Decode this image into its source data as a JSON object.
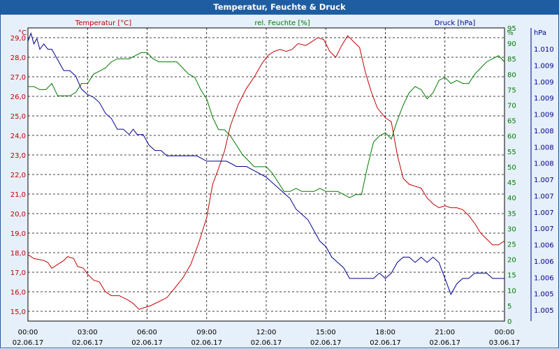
{
  "window": {
    "title": "Temperatur, Feuchte & Druck"
  },
  "colors": {
    "temperature": "#c00000",
    "humidity": "#007a00",
    "pressure": "#00008b",
    "titlebar": "#1f5da2"
  },
  "chart_data": {
    "type": "line",
    "title": "Temperatur, Feuchte & Druck",
    "x_ticks": [
      {
        "time": "00:00",
        "date": "02.06.17"
      },
      {
        "time": "03:00",
        "date": "02.06.17"
      },
      {
        "time": "06:00",
        "date": "02.06.17"
      },
      {
        "time": "09:00",
        "date": "02.06.17"
      },
      {
        "time": "12:00",
        "date": "02.06.17"
      },
      {
        "time": "15:00",
        "date": "02.06.17"
      },
      {
        "time": "18:00",
        "date": "02.06.17"
      },
      {
        "time": "21:00",
        "date": "02.06.17"
      },
      {
        "time": "00:00",
        "date": "03.06.17"
      }
    ],
    "x_range_hours": [
      0,
      24
    ],
    "axes": {
      "temperature": {
        "label": "Temperatur [°C]",
        "unit": "°C",
        "range": [
          14.5,
          29.5
        ],
        "ticks": [
          "29,0",
          "28,0",
          "27,0",
          "26,0",
          "25,0",
          "24,0",
          "23,0",
          "22,0",
          "21,0",
          "20,0",
          "19,0",
          "18,0",
          "17,0",
          "16,0",
          "15,0"
        ]
      },
      "humidity": {
        "label": "rel. Feuchte [%]",
        "unit": "%",
        "range": [
          0,
          95
        ],
        "ticks": [
          "95",
          "90",
          "85",
          "80",
          "75",
          "70",
          "65",
          "60",
          "55",
          "50",
          "45",
          "40",
          "35",
          "30",
          "25",
          "20",
          "15",
          "10",
          "5",
          "0"
        ]
      },
      "pressure": {
        "label": "Druck [hPa]",
        "unit": "hPa",
        "range": [
          1004.5,
          1010.0
        ],
        "ticks": [
          "1.010",
          "1.009",
          "1.009",
          "1.009",
          "1.009",
          "1.008",
          "1.008",
          "1.008",
          "1.007",
          "1.007",
          "1.007",
          "1.007",
          "1.006",
          "1.006",
          "1.006",
          "1.005",
          "1.005"
        ]
      }
    },
    "series": [
      {
        "name": "Temperatur",
        "axis": "temperature",
        "points": [
          [
            0,
            17.9
          ],
          [
            0.3,
            17.7
          ],
          [
            0.8,
            17.6
          ],
          [
            1.0,
            17.5
          ],
          [
            1.2,
            17.2
          ],
          [
            1.5,
            17.4
          ],
          [
            1.8,
            17.6
          ],
          [
            2.0,
            17.8
          ],
          [
            2.3,
            17.7
          ],
          [
            2.5,
            17.3
          ],
          [
            2.8,
            17.2
          ],
          [
            3.0,
            16.9
          ],
          [
            3.3,
            16.6
          ],
          [
            3.6,
            16.5
          ],
          [
            3.9,
            16.0
          ],
          [
            4.2,
            15.8
          ],
          [
            4.6,
            15.8
          ],
          [
            5.0,
            15.6
          ],
          [
            5.3,
            15.4
          ],
          [
            5.6,
            15.1
          ],
          [
            5.9,
            15.2
          ],
          [
            6.2,
            15.3
          ],
          [
            6.6,
            15.5
          ],
          [
            7.0,
            15.7
          ],
          [
            7.4,
            16.2
          ],
          [
            7.8,
            16.7
          ],
          [
            8.2,
            17.4
          ],
          [
            8.6,
            18.5
          ],
          [
            9.0,
            19.8
          ],
          [
            9.3,
            21.5
          ],
          [
            9.6,
            22.3
          ],
          [
            9.9,
            23.2
          ],
          [
            10.2,
            24.5
          ],
          [
            10.6,
            25.6
          ],
          [
            11.0,
            26.4
          ],
          [
            11.4,
            27.0
          ],
          [
            11.8,
            27.7
          ],
          [
            12.1,
            28.1
          ],
          [
            12.4,
            28.3
          ],
          [
            12.7,
            28.4
          ],
          [
            13.0,
            28.3
          ],
          [
            13.3,
            28.4
          ],
          [
            13.6,
            28.7
          ],
          [
            14.0,
            28.6
          ],
          [
            14.3,
            28.8
          ],
          [
            14.6,
            29.0
          ],
          [
            14.9,
            28.9
          ],
          [
            15.2,
            28.3
          ],
          [
            15.5,
            28.0
          ],
          [
            15.8,
            28.6
          ],
          [
            16.1,
            29.1
          ],
          [
            16.4,
            28.8
          ],
          [
            16.7,
            28.5
          ],
          [
            17.0,
            27.2
          ],
          [
            17.3,
            26.2
          ],
          [
            17.6,
            25.4
          ],
          [
            18.0,
            24.9
          ],
          [
            18.3,
            24.7
          ],
          [
            18.6,
            23.0
          ],
          [
            18.9,
            21.8
          ],
          [
            19.2,
            21.5
          ],
          [
            19.5,
            21.4
          ],
          [
            19.8,
            21.3
          ],
          [
            20.1,
            20.8
          ],
          [
            20.4,
            20.5
          ],
          [
            20.7,
            20.3
          ],
          [
            21.0,
            20.4
          ],
          [
            21.3,
            20.3
          ],
          [
            21.6,
            20.3
          ],
          [
            21.9,
            20.2
          ],
          [
            22.2,
            19.9
          ],
          [
            22.5,
            19.5
          ],
          [
            22.8,
            19.0
          ],
          [
            23.1,
            18.7
          ],
          [
            23.4,
            18.4
          ],
          [
            23.7,
            18.4
          ],
          [
            24.0,
            18.6
          ]
        ]
      },
      {
        "name": "rel. Feuchte",
        "axis": "humidity",
        "points": [
          [
            0,
            76
          ],
          [
            0.3,
            76
          ],
          [
            0.6,
            75
          ],
          [
            0.9,
            75
          ],
          [
            1.2,
            77
          ],
          [
            1.5,
            73
          ],
          [
            1.8,
            73
          ],
          [
            2.1,
            73
          ],
          [
            2.4,
            74
          ],
          [
            2.7,
            77
          ],
          [
            3.0,
            77
          ],
          [
            3.3,
            80
          ],
          [
            3.6,
            81
          ],
          [
            3.9,
            82
          ],
          [
            4.2,
            84
          ],
          [
            4.5,
            85
          ],
          [
            4.8,
            85
          ],
          [
            5.1,
            85
          ],
          [
            5.4,
            86
          ],
          [
            5.7,
            87
          ],
          [
            6.0,
            87
          ],
          [
            6.3,
            85
          ],
          [
            6.6,
            84
          ],
          [
            6.9,
            84
          ],
          [
            7.2,
            84
          ],
          [
            7.5,
            84
          ],
          [
            7.8,
            82
          ],
          [
            8.1,
            80
          ],
          [
            8.4,
            79
          ],
          [
            8.7,
            75
          ],
          [
            9.0,
            72
          ],
          [
            9.3,
            66
          ],
          [
            9.6,
            62
          ],
          [
            9.9,
            62
          ],
          [
            10.2,
            60
          ],
          [
            10.5,
            57
          ],
          [
            10.8,
            54
          ],
          [
            11.1,
            52
          ],
          [
            11.4,
            50
          ],
          [
            11.7,
            50
          ],
          [
            12.0,
            50
          ],
          [
            12.3,
            48
          ],
          [
            12.6,
            45
          ],
          [
            12.9,
            42
          ],
          [
            13.2,
            42
          ],
          [
            13.5,
            43
          ],
          [
            13.8,
            42
          ],
          [
            14.1,
            42
          ],
          [
            14.4,
            42
          ],
          [
            14.7,
            43
          ],
          [
            15.0,
            42
          ],
          [
            15.3,
            42
          ],
          [
            15.6,
            42
          ],
          [
            15.9,
            41
          ],
          [
            16.2,
            40
          ],
          [
            16.5,
            41
          ],
          [
            16.8,
            41
          ],
          [
            17.1,
            50
          ],
          [
            17.4,
            58
          ],
          [
            17.7,
            60
          ],
          [
            18.0,
            61
          ],
          [
            18.3,
            59
          ],
          [
            18.6,
            65
          ],
          [
            18.9,
            70
          ],
          [
            19.2,
            74
          ],
          [
            19.5,
            76
          ],
          [
            19.8,
            75
          ],
          [
            20.1,
            72
          ],
          [
            20.4,
            74
          ],
          [
            20.7,
            78
          ],
          [
            21.0,
            79
          ],
          [
            21.3,
            77
          ],
          [
            21.6,
            78
          ],
          [
            21.9,
            77
          ],
          [
            22.2,
            77
          ],
          [
            22.5,
            80
          ],
          [
            22.8,
            82
          ],
          [
            23.1,
            84
          ],
          [
            23.4,
            85
          ],
          [
            23.7,
            86
          ],
          [
            24.0,
            84
          ]
        ]
      },
      {
        "name": "Druck",
        "axis": "pressure",
        "points": [
          [
            0,
            1009.75
          ],
          [
            0.15,
            1009.9
          ],
          [
            0.3,
            1009.7
          ],
          [
            0.45,
            1009.8
          ],
          [
            0.6,
            1009.6
          ],
          [
            0.8,
            1009.7
          ],
          [
            1.0,
            1009.6
          ],
          [
            1.2,
            1009.6
          ],
          [
            1.5,
            1009.4
          ],
          [
            1.8,
            1009.2
          ],
          [
            2.1,
            1009.2
          ],
          [
            2.4,
            1009.1
          ],
          [
            2.7,
            1008.85
          ],
          [
            3.0,
            1008.75
          ],
          [
            3.3,
            1008.7
          ],
          [
            3.6,
            1008.6
          ],
          [
            3.9,
            1008.4
          ],
          [
            4.2,
            1008.3
          ],
          [
            4.5,
            1008.1
          ],
          [
            4.8,
            1008.1
          ],
          [
            5.1,
            1008.0
          ],
          [
            5.3,
            1008.1
          ],
          [
            5.5,
            1008.0
          ],
          [
            5.8,
            1008.0
          ],
          [
            6.1,
            1007.8
          ],
          [
            6.4,
            1007.7
          ],
          [
            6.7,
            1007.7
          ],
          [
            7.0,
            1007.6
          ],
          [
            7.5,
            1007.6
          ],
          [
            8.0,
            1007.6
          ],
          [
            8.5,
            1007.6
          ],
          [
            9.0,
            1007.5
          ],
          [
            9.5,
            1007.5
          ],
          [
            10.0,
            1007.5
          ],
          [
            10.5,
            1007.4
          ],
          [
            11.0,
            1007.4
          ],
          [
            11.5,
            1007.3
          ],
          [
            12.0,
            1007.2
          ],
          [
            12.3,
            1007.1
          ],
          [
            12.6,
            1007.0
          ],
          [
            12.9,
            1006.9
          ],
          [
            13.2,
            1006.8
          ],
          [
            13.5,
            1006.6
          ],
          [
            13.8,
            1006.5
          ],
          [
            14.1,
            1006.4
          ],
          [
            14.4,
            1006.2
          ],
          [
            14.7,
            1006.0
          ],
          [
            15.0,
            1005.9
          ],
          [
            15.3,
            1005.7
          ],
          [
            15.6,
            1005.6
          ],
          [
            15.9,
            1005.5
          ],
          [
            16.2,
            1005.3
          ],
          [
            16.5,
            1005.3
          ],
          [
            16.8,
            1005.3
          ],
          [
            17.1,
            1005.3
          ],
          [
            17.4,
            1005.3
          ],
          [
            17.7,
            1005.4
          ],
          [
            18.0,
            1005.3
          ],
          [
            18.3,
            1005.4
          ],
          [
            18.6,
            1005.6
          ],
          [
            18.9,
            1005.7
          ],
          [
            19.2,
            1005.7
          ],
          [
            19.5,
            1005.6
          ],
          [
            19.8,
            1005.7
          ],
          [
            20.1,
            1005.6
          ],
          [
            20.4,
            1005.7
          ],
          [
            20.7,
            1005.6
          ],
          [
            21.0,
            1005.3
          ],
          [
            21.3,
            1005.0
          ],
          [
            21.6,
            1005.2
          ],
          [
            21.9,
            1005.3
          ],
          [
            22.2,
            1005.3
          ],
          [
            22.5,
            1005.4
          ],
          [
            22.8,
            1005.4
          ],
          [
            23.1,
            1005.4
          ],
          [
            23.4,
            1005.3
          ],
          [
            23.7,
            1005.3
          ],
          [
            24.0,
            1005.3
          ]
        ]
      }
    ]
  }
}
